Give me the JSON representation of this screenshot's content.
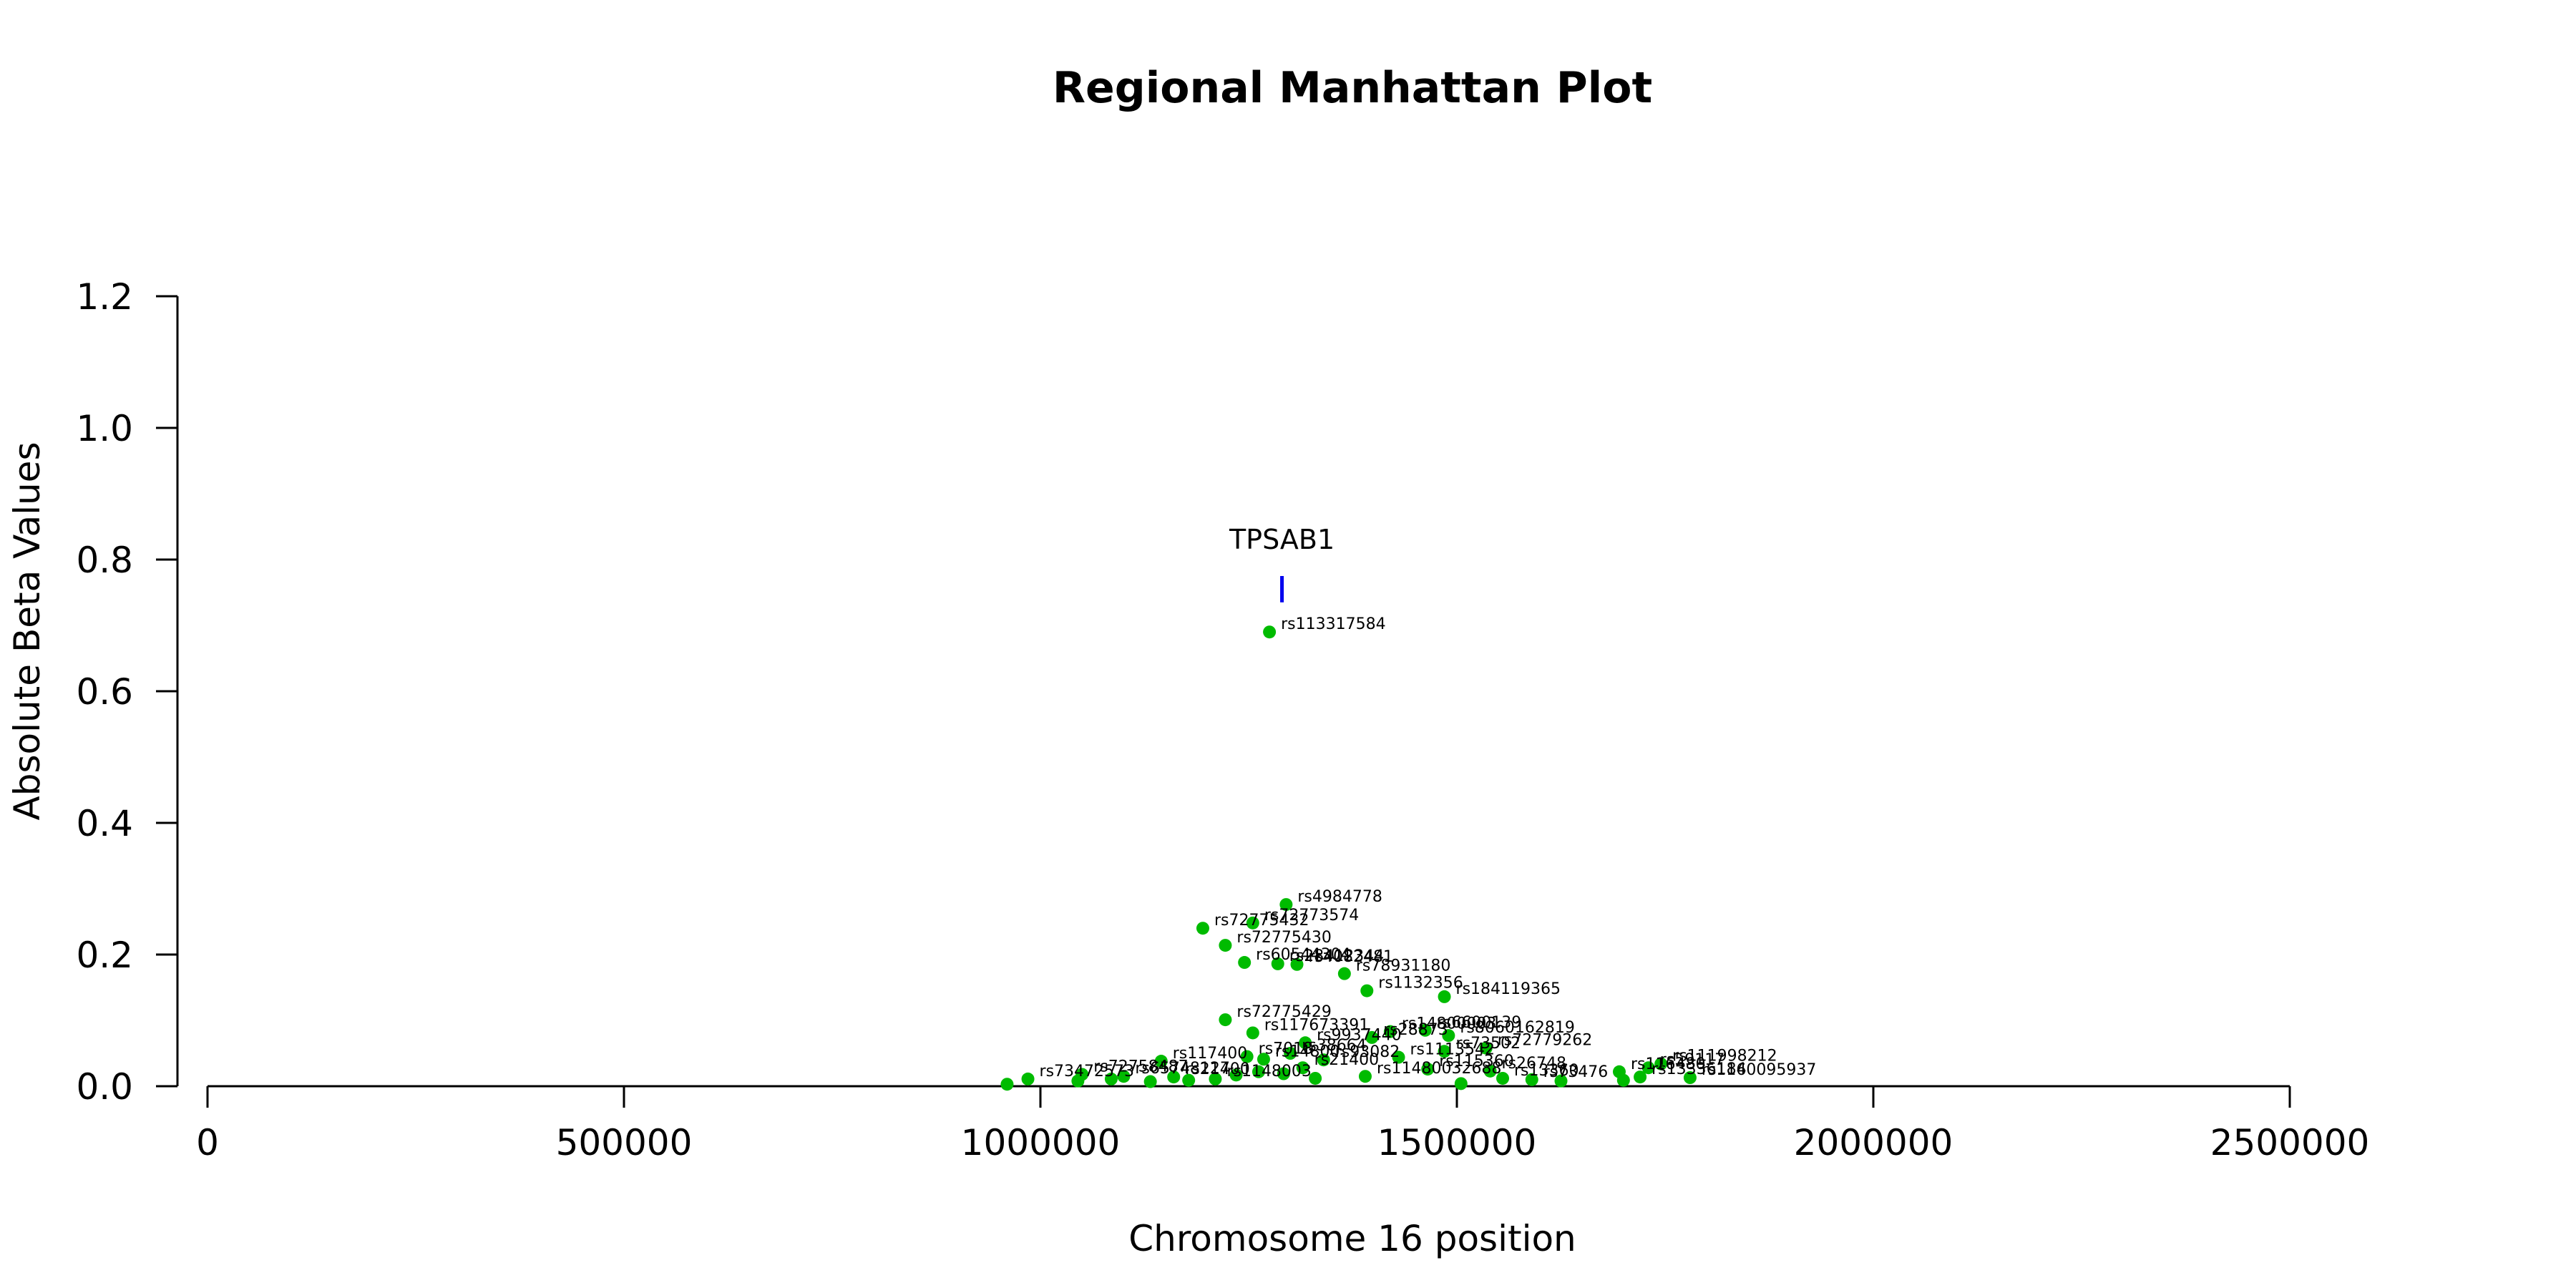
{
  "chart_data": {
    "type": "scatter",
    "title": "Regional Manhattan Plot",
    "xlabel": "Chromosome 16 position",
    "ylabel": "Absolute Beta Values",
    "xlim": [
      0,
      2500000
    ],
    "ylim": [
      0,
      1.2
    ],
    "x_ticks": [
      0,
      500000,
      1000000,
      1500000,
      2000000,
      2500000
    ],
    "x_tick_labels": [
      "0",
      "500000",
      "1000000",
      "1500000",
      "2000000",
      "2500000"
    ],
    "y_ticks": [
      0,
      0.2,
      0.4,
      0.6,
      0.8,
      1.0,
      1.2
    ],
    "y_tick_labels": [
      "0.0",
      "0.2",
      "0.4",
      "0.6",
      "0.8",
      "1.0",
      "1.2"
    ],
    "grid": false,
    "point_color": "#00bb00",
    "gene_color": "#0000ee",
    "gene": {
      "name": "TPSAB1",
      "position": 1290000,
      "y_bottom": 0.735,
      "y_top": 0.775
    },
    "points": [
      {
        "x": 1275000,
        "y": 0.69,
        "label": "rs113317584"
      },
      {
        "x": 1295000,
        "y": 0.276,
        "label": "rs4984778"
      },
      {
        "x": 1255000,
        "y": 0.248,
        "label": "rs72773574"
      },
      {
        "x": 1195000,
        "y": 0.24,
        "label": "rs72775432"
      },
      {
        "x": 1222000,
        "y": 0.214,
        "label": "rs72775430"
      },
      {
        "x": 1245000,
        "y": 0.188,
        "label": "rs60544304"
      },
      {
        "x": 1285000,
        "y": 0.186,
        "label": "rs28412344"
      },
      {
        "x": 1308000,
        "y": 0.185,
        "label": "rs4082481"
      },
      {
        "x": 1365000,
        "y": 0.171,
        "label": "rs78931180"
      },
      {
        "x": 1392000,
        "y": 0.145,
        "label": "rs1132356"
      },
      {
        "x": 1485000,
        "y": 0.136,
        "label": "rs184119365"
      },
      {
        "x": 1222000,
        "y": 0.101,
        "label": "rs72775429"
      },
      {
        "x": 1255000,
        "y": 0.081,
        "label": "rs117673391"
      },
      {
        "x": 1420000,
        "y": 0.083,
        "label": "rs14800003"
      },
      {
        "x": 1462000,
        "y": 0.085,
        "label": "rs6600139"
      },
      {
        "x": 1490000,
        "y": 0.077,
        "label": "rs8060162819"
      },
      {
        "x": 1318000,
        "y": 0.066,
        "label": "rs9937440"
      },
      {
        "x": 1398000,
        "y": 0.074,
        "label": "rs28873"
      },
      {
        "x": 1485000,
        "y": 0.053,
        "label": "rs73502"
      },
      {
        "x": 1535000,
        "y": 0.058,
        "label": "rs72779262"
      },
      {
        "x": 1300000,
        "y": 0.05,
        "label": "rs38664"
      },
      {
        "x": 1430000,
        "y": 0.044,
        "label": "rs1113542"
      },
      {
        "x": 1145000,
        "y": 0.038,
        "label": "rs117400"
      },
      {
        "x": 1248000,
        "y": 0.045,
        "label": "rs7018"
      },
      {
        "x": 1268000,
        "y": 0.041,
        "label": "rs14800"
      },
      {
        "x": 1340000,
        "y": 0.04,
        "label": "rs93082"
      },
      {
        "x": 1745000,
        "y": 0.034,
        "label": "rs111998212"
      },
      {
        "x": 1730000,
        "y": 0.028,
        "label": "rs59117"
      },
      {
        "x": 1695000,
        "y": 0.022,
        "label": "rs116480"
      },
      {
        "x": 1465000,
        "y": 0.026,
        "label": "rs115360"
      },
      {
        "x": 1540000,
        "y": 0.023,
        "label": "rs26748"
      },
      {
        "x": 1315000,
        "y": 0.028,
        "label": "rs21400"
      },
      {
        "x": 1390000,
        "y": 0.015,
        "label": "rs11480032688"
      },
      {
        "x": 1720000,
        "y": 0.014,
        "label": "rs13336184"
      },
      {
        "x": 1780000,
        "y": 0.013,
        "label": "rs1160095937"
      },
      {
        "x": 1050000,
        "y": 0.018,
        "label": "rs72758487"
      },
      {
        "x": 1100000,
        "y": 0.015,
        "label": "rs65748127"
      },
      {
        "x": 1160000,
        "y": 0.014,
        "label": "rs21400"
      },
      {
        "x": 1210000,
        "y": 0.011,
        "label": "rs1148003"
      },
      {
        "x": 985000,
        "y": 0.011,
        "label": "rs73472573"
      },
      {
        "x": 960000,
        "y": 0.003,
        "label": ""
      },
      {
        "x": 1045000,
        "y": 0.008,
        "label": ""
      },
      {
        "x": 1085000,
        "y": 0.011,
        "label": ""
      },
      {
        "x": 1132000,
        "y": 0.007,
        "label": ""
      },
      {
        "x": 1178000,
        "y": 0.009,
        "label": ""
      },
      {
        "x": 1235000,
        "y": 0.017,
        "label": ""
      },
      {
        "x": 1262000,
        "y": 0.022,
        "label": ""
      },
      {
        "x": 1292000,
        "y": 0.019,
        "label": ""
      },
      {
        "x": 1330000,
        "y": 0.012,
        "label": ""
      },
      {
        "x": 1505000,
        "y": 0.004,
        "label": ""
      },
      {
        "x": 1555000,
        "y": 0.012,
        "label": "rs13360"
      },
      {
        "x": 1590000,
        "y": 0.01,
        "label": "rs73476"
      },
      {
        "x": 1625000,
        "y": 0.008,
        "label": ""
      },
      {
        "x": 1700000,
        "y": 0.009,
        "label": ""
      }
    ]
  }
}
